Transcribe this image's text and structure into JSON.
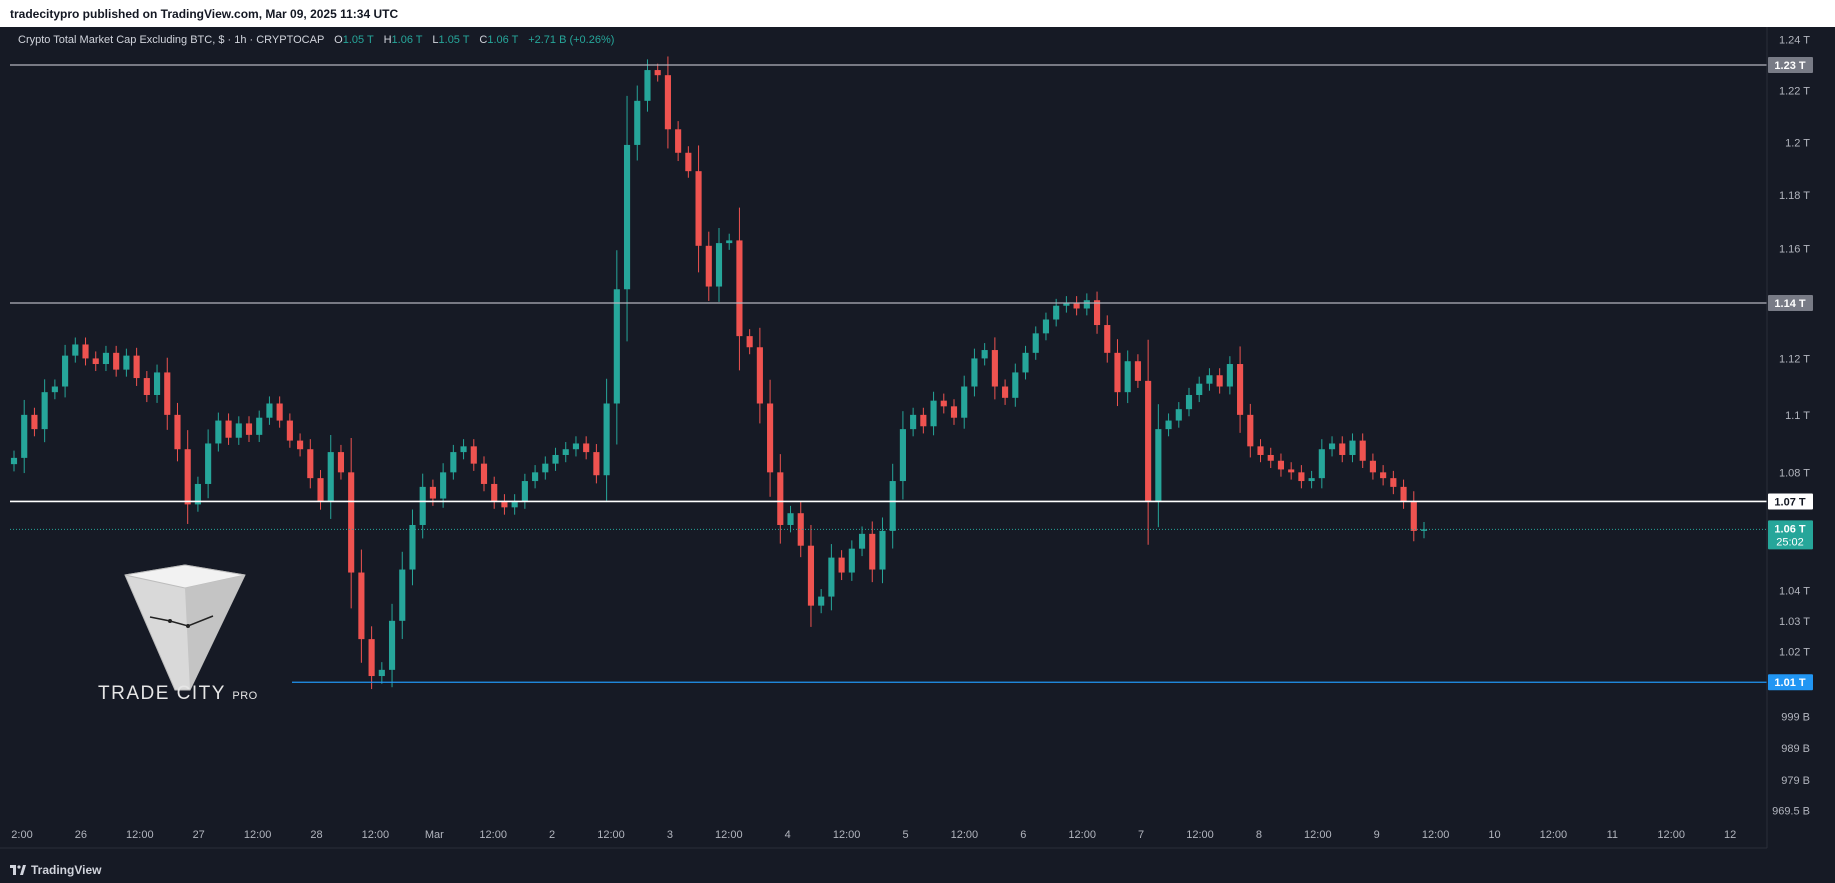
{
  "header": {
    "publisher_line": "tradecitypro published on TradingView.com, Mar 09, 2025 11:34 UTC"
  },
  "legend": {
    "symbol": "Crypto Total Market Cap Excluding BTC, $ · 1h · CRYPTOCAP",
    "o_label": "O",
    "o_value": "1.05 T",
    "h_label": "H",
    "h_value": "1.06 T",
    "l_label": "L",
    "l_value": "1.05 T",
    "c_label": "C",
    "c_value": "1.06 T",
    "change": "+2.71 B (+0.26%)"
  },
  "watermark": {
    "brand": "TRADE CITY",
    "suffix": "PRO"
  },
  "footer": {
    "brand": "TradingView"
  },
  "colors": {
    "up": "#26a69a",
    "down": "#ef5350",
    "background": "#161a25",
    "support_blue": "#2962ff",
    "current_price": "#26a69a"
  },
  "chart_data": {
    "type": "candlestick",
    "title": "Crypto Total Market Cap Excluding BTC, $ · 1h · CRYPTOCAP",
    "y_scale": "log",
    "ylim_T": [
      0.965,
      1.245
    ],
    "y_tick_labels": [
      "1.24 T",
      "1.22 T",
      "1.2 T",
      "1.18 T",
      "1.16 T",
      "1.14 T",
      "1.12 T",
      "1.1 T",
      "1.08 T",
      "1.06 T",
      "1.04 T",
      "1.03 T",
      "1.02 T",
      "1.01 T",
      "999 B",
      "989 B",
      "979 B",
      "969.5 B"
    ],
    "y_tick_values_T": [
      1.24,
      1.22,
      1.2,
      1.18,
      1.16,
      1.14,
      1.12,
      1.1,
      1.08,
      1.06,
      1.04,
      1.03,
      1.02,
      1.01,
      0.999,
      0.989,
      0.979,
      0.9695
    ],
    "x_tick_labels": [
      "2:00",
      "26",
      "12:00",
      "27",
      "12:00",
      "28",
      "12:00",
      "Mar",
      "12:00",
      "2",
      "12:00",
      "3",
      "12:00",
      "4",
      "12:00",
      "5",
      "12:00",
      "6",
      "12:00",
      "7",
      "12:00",
      "8",
      "12:00",
      "9",
      "12:00",
      "10",
      "12:00",
      "11",
      "12:00",
      "12"
    ],
    "horizontal_levels": [
      {
        "label": "1.23 T",
        "value": 1.23,
        "color": "#b2b5be"
      },
      {
        "label": "1.14 T",
        "value": 1.14,
        "color": "#b2b5be"
      },
      {
        "label": "1.07 T",
        "value": 1.07,
        "color": "#ffffff"
      },
      {
        "label": "1.01 T",
        "value": 1.01,
        "color": "#2196f3"
      }
    ],
    "current_price": {
      "label": "1.06 T",
      "countdown": "25:02",
      "value": 1.0605
    },
    "close_path_T": [
      1.085,
      1.1,
      1.095,
      1.108,
      1.11,
      1.121,
      1.125,
      1.12,
      1.118,
      1.122,
      1.116,
      1.121,
      1.113,
      1.107,
      1.115,
      1.1,
      1.088,
      1.069,
      1.076,
      1.09,
      1.098,
      1.092,
      1.097,
      1.093,
      1.099,
      1.104,
      1.098,
      1.091,
      1.088,
      1.078,
      1.07,
      1.087,
      1.08,
      1.046,
      1.024,
      1.012,
      1.014,
      1.03,
      1.047,
      1.062,
      1.075,
      1.071,
      1.08,
      1.087,
      1.089,
      1.083,
      1.076,
      1.07,
      1.068,
      1.07,
      1.077,
      1.08,
      1.083,
      1.086,
      1.088,
      1.09,
      1.087,
      1.079,
      1.104,
      1.145,
      1.199,
      1.216,
      1.228,
      1.226,
      1.205,
      1.196,
      1.189,
      1.161,
      1.146,
      1.162,
      1.163,
      1.128,
      1.124,
      1.104,
      1.08,
      1.062,
      1.066,
      1.055,
      1.035,
      1.038,
      1.051,
      1.046,
      1.054,
      1.059,
      1.047,
      1.06,
      1.077,
      1.095,
      1.1,
      1.096,
      1.105,
      1.103,
      1.099,
      1.11,
      1.12,
      1.123,
      1.11,
      1.106,
      1.115,
      1.122,
      1.129,
      1.134,
      1.139,
      1.14,
      1.138,
      1.141,
      1.132,
      1.122,
      1.108,
      1.119,
      1.112,
      1.07,
      1.095,
      1.098,
      1.102,
      1.107,
      1.111,
      1.114,
      1.11,
      1.118,
      1.1,
      1.089,
      1.086,
      1.084,
      1.081,
      1.08,
      1.077,
      1.078,
      1.088,
      1.09,
      1.086,
      1.091,
      1.084,
      1.08,
      1.078,
      1.075,
      1.07,
      1.06,
      1.0605
    ]
  }
}
